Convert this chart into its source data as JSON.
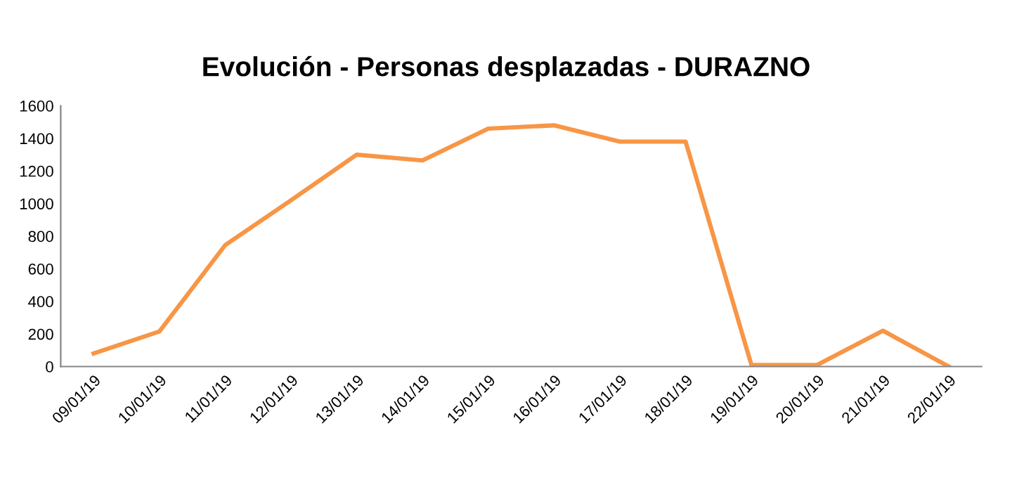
{
  "chart_data": {
    "type": "line",
    "title": "Evolución - Personas desplazadas - DURAZNO",
    "categories": [
      "09/01/19",
      "10/01/19",
      "11/01/19",
      "12/01/19",
      "13/01/19",
      "14/01/19",
      "15/01/19",
      "16/01/19",
      "17/01/19",
      "18/01/19",
      "19/01/19",
      "20/01/19",
      "21/01/19",
      "22/01/19"
    ],
    "series": [
      {
        "color": "#f79646",
        "values": [
          80,
          215,
          745,
          1020,
          1300,
          1265,
          1460,
          1480,
          1380,
          1380,
          10,
          10,
          220,
          0
        ]
      }
    ],
    "ylim": [
      0,
      1600
    ],
    "yticks": [
      0,
      200,
      400,
      600,
      800,
      1000,
      1200,
      1400,
      1600
    ],
    "grid": false,
    "legend": false,
    "marker": "none",
    "line_style": "solid"
  }
}
